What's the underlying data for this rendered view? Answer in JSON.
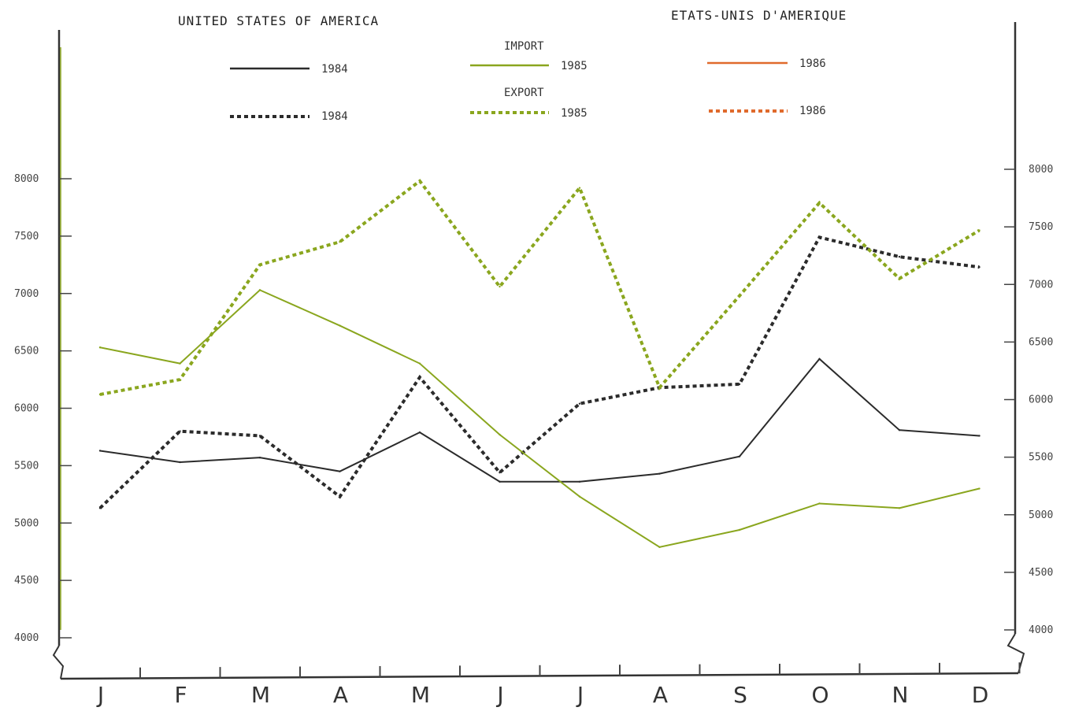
{
  "chart_data": {
    "type": "line",
    "title_left": "UNITED STATES OF AMERICA",
    "title_right": "ETATS-UNIS D'AMERIQUE",
    "legend": {
      "import_label": "IMPORT",
      "export_label": "EXPORT",
      "import_entries": [
        "1984",
        "1985",
        "1986"
      ],
      "export_entries": [
        "1984",
        "1985",
        "1986"
      ]
    },
    "categories": [
      "J",
      "F",
      "M",
      "A",
      "M",
      "J",
      "J",
      "A",
      "S",
      "O",
      "N",
      "D"
    ],
    "y_ticks_left": [
      "8000",
      "7500",
      "7000",
      "6500",
      "6000",
      "5500",
      "5000",
      "4500",
      "4000"
    ],
    "y_ticks_right": [
      "8000",
      "7500",
      "7000",
      "6500",
      "6000",
      "5500",
      "5000",
      "4500",
      "4000"
    ],
    "ylim": [
      4000,
      8000
    ],
    "grid": false,
    "colors": {
      "1984": "#2b2b2b",
      "1985": "#8aa61e",
      "1986": "#e06a2c"
    },
    "series": [
      {
        "name": "1984",
        "kind": "import",
        "values": [
          5630,
          5530,
          5570,
          5450,
          5790,
          5360,
          5360,
          5430,
          5580,
          6430,
          5810,
          5760
        ]
      },
      {
        "name": "1984",
        "kind": "export",
        "values": [
          5130,
          5800,
          5760,
          5230,
          6270,
          5440,
          6040,
          6180,
          6210,
          7490,
          7320,
          7230
        ]
      },
      {
        "name": "1985",
        "kind": "import",
        "values": [
          6530,
          6390,
          7030,
          6720,
          6390,
          5770,
          5230,
          4790,
          4940,
          5170,
          5130,
          5300
        ]
      },
      {
        "name": "1985",
        "kind": "export",
        "values": [
          6120,
          6250,
          7250,
          7450,
          7980,
          7060,
          7920,
          6180,
          6980,
          7790,
          7130,
          7550
        ]
      }
    ]
  }
}
